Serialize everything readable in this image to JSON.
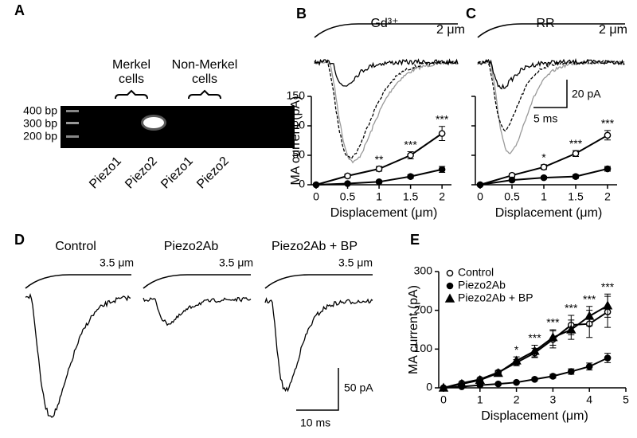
{
  "panel_A": {
    "label": "A",
    "ladder": [
      "400 bp",
      "300 bp",
      "200 bp"
    ],
    "groups": [
      {
        "lines": [
          "Merkel",
          "cells"
        ]
      },
      {
        "lines": [
          "Non-Merkel",
          "cells"
        ]
      }
    ],
    "lanes": [
      "Piezo1",
      "Piezo2",
      "Piezo1",
      "Piezo2"
    ]
  },
  "panel_D": {
    "label": "D",
    "conditions": [
      "Control",
      "Piezo2Ab",
      "Piezo2Ab + BP"
    ],
    "stimulus": [
      "3.5 μm",
      "3.5 μm",
      "3.5 μm"
    ],
    "scale_bar": {
      "current": "50 pA",
      "time": "10 ms"
    }
  },
  "chart_data": [
    {
      "type": "line",
      "label": "B",
      "title": "Gd³⁺",
      "stimulus": "2 μm",
      "y_label": "MA current (pA)",
      "x_label": "Displacement (μm)",
      "x": [
        0,
        0.5,
        1,
        1.5,
        2
      ],
      "xlim": [
        0,
        2.15
      ],
      "xticks": [
        0,
        0.5,
        1,
        1.5,
        2
      ],
      "ylim": [
        0,
        150
      ],
      "yticks": [
        0,
        50,
        100,
        150
      ],
      "series": [
        {
          "color": "#000000",
          "marker": "open-circle",
          "values": [
            0,
            15,
            27,
            50,
            87
          ],
          "errors": [
            0,
            3,
            4,
            6,
            12
          ]
        },
        {
          "color": "#000000",
          "marker": "filled-circle",
          "values": [
            0,
            2,
            5,
            14,
            26
          ],
          "errors": [
            0,
            1,
            2,
            3,
            5
          ]
        }
      ],
      "significance": [
        null,
        null,
        "**",
        "***",
        "***"
      ]
    },
    {
      "type": "line",
      "label": "C",
      "title": "RR",
      "stimulus": "2 μm",
      "scale_bar": {
        "current": "20 pA",
        "time": "5 ms"
      },
      "x_label": "Displacement (μm)",
      "x": [
        0,
        0.5,
        1,
        1.5,
        2
      ],
      "xlim": [
        0,
        2.15
      ],
      "xticks": [
        0,
        0.5,
        1,
        1.5,
        2
      ],
      "ylim": [
        0,
        150
      ],
      "yticks": [
        0,
        50,
        100,
        150
      ],
      "ytick_labels": false,
      "series": [
        {
          "color": "#000000",
          "marker": "open-circle",
          "values": [
            0,
            16,
            30,
            53,
            84
          ],
          "errors": [
            0,
            3,
            4,
            5,
            8
          ]
        },
        {
          "color": "#000000",
          "marker": "filled-circle",
          "values": [
            0,
            8,
            12,
            14,
            27
          ],
          "errors": [
            0,
            2,
            2,
            3,
            4
          ]
        }
      ],
      "significance": [
        null,
        null,
        "*",
        "***",
        "***"
      ]
    },
    {
      "type": "line",
      "label": "E",
      "y_label": "MA current (pA)",
      "x_label": "Displacement (μm)",
      "x": [
        0,
        0.5,
        1,
        1.5,
        2,
        2.5,
        3,
        3.5,
        4,
        4.5
      ],
      "xlim": [
        0,
        5
      ],
      "xticks": [
        0,
        1,
        2,
        3,
        4,
        5
      ],
      "ylim": [
        0,
        300
      ],
      "yticks": [
        0,
        100,
        200,
        300
      ],
      "legend": "top-left",
      "series": [
        {
          "name": "Control",
          "color": "#000000",
          "marker": "open-circle",
          "values": [
            0,
            12,
            22,
            40,
            65,
            90,
            125,
            162,
            165,
            196
          ],
          "errors": [
            0,
            2,
            3,
            5,
            8,
            12,
            22,
            25,
            35,
            40
          ]
        },
        {
          "name": "Piezo2Ab",
          "color": "#000000",
          "marker": "filled-circle",
          "values": [
            0,
            3,
            7,
            10,
            14,
            22,
            30,
            42,
            55,
            77
          ],
          "errors": [
            0,
            1,
            2,
            2,
            3,
            4,
            5,
            7,
            9,
            12
          ]
        },
        {
          "name": "Piezo2Ab + BP",
          "color": "#000000",
          "marker": "filled-triangle",
          "values": [
            0,
            10,
            20,
            38,
            70,
            95,
            130,
            150,
            185,
            212
          ],
          "errors": [
            0,
            2,
            3,
            6,
            10,
            15,
            20,
            25,
            25,
            30
          ]
        }
      ],
      "significance": [
        null,
        null,
        null,
        null,
        "*",
        "***",
        "***",
        "***",
        "***",
        "***"
      ]
    }
  ]
}
